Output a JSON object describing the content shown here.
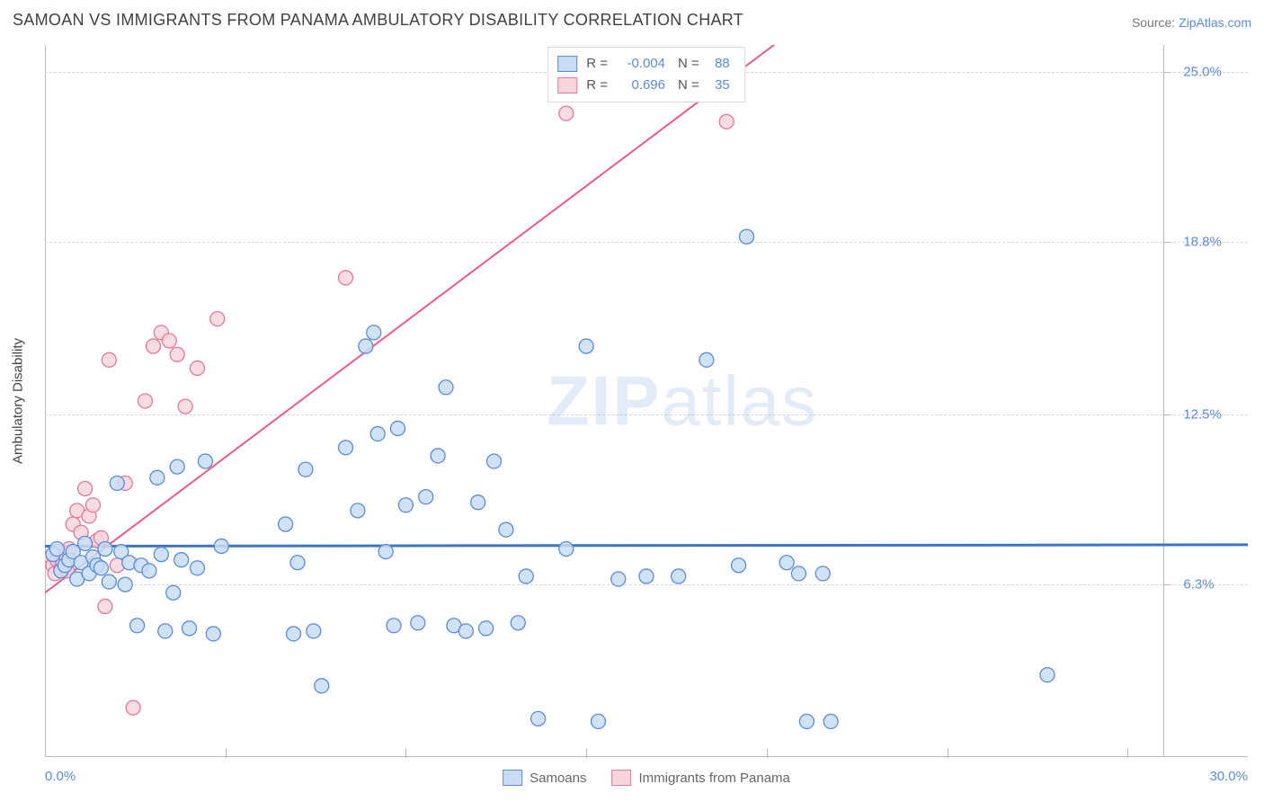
{
  "header": {
    "title": "SAMOAN VS IMMIGRANTS FROM PANAMA AMBULATORY DISABILITY CORRELATION CHART",
    "source_prefix": "Source: ",
    "source_link": "ZipAtlas.com"
  },
  "chart": {
    "type": "scatter",
    "y_axis_label": "Ambulatory Disability",
    "x_min": 0.0,
    "x_max": 30.0,
    "y_min": 0.0,
    "y_max": 26.0,
    "x_tick_start": 0.0,
    "x_tick_end": 30.0,
    "y_grid": [
      6.3,
      12.5,
      18.8,
      25.0
    ],
    "y_grid_labels": [
      "6.3%",
      "12.5%",
      "18.8%",
      "25.0%"
    ],
    "x_label_min": "0.0%",
    "x_label_max": "30.0%",
    "x_minor_ticks": [
      4.5,
      9.0,
      13.5,
      18.0,
      22.5,
      27.0
    ],
    "right_axis_x": 27.9,
    "background_color": "#ffffff",
    "grid_color": "#d6d6d6",
    "axis_color": "#b9b9b9",
    "marker_radius": 8,
    "marker_stroke_width": 1.3,
    "line_width_blue": 3,
    "line_width_pink": 2,
    "watermark": "ZIPatlas",
    "series": [
      {
        "id": "samoans",
        "label": "Samoans",
        "fill": "#c8ddf4",
        "stroke": "#5b8bd6",
        "r_value": "-0.004",
        "n_value": "88",
        "regression": {
          "y_start": 7.7,
          "y_end": 7.75
        },
        "points": [
          [
            0.2,
            7.4
          ],
          [
            0.3,
            7.6
          ],
          [
            0.4,
            6.8
          ],
          [
            0.5,
            7.0
          ],
          [
            0.6,
            7.2
          ],
          [
            0.7,
            7.5
          ],
          [
            0.8,
            6.5
          ],
          [
            0.9,
            7.1
          ],
          [
            1.0,
            7.8
          ],
          [
            1.1,
            6.7
          ],
          [
            1.2,
            7.3
          ],
          [
            1.3,
            7.0
          ],
          [
            1.4,
            6.9
          ],
          [
            1.5,
            7.6
          ],
          [
            1.6,
            6.4
          ],
          [
            1.8,
            10.0
          ],
          [
            1.9,
            7.5
          ],
          [
            2.0,
            6.3
          ],
          [
            2.1,
            7.1
          ],
          [
            2.3,
            4.8
          ],
          [
            2.4,
            7.0
          ],
          [
            2.6,
            6.8
          ],
          [
            2.8,
            10.2
          ],
          [
            2.9,
            7.4
          ],
          [
            3.0,
            4.6
          ],
          [
            3.2,
            6.0
          ],
          [
            3.3,
            10.6
          ],
          [
            3.4,
            7.2
          ],
          [
            3.6,
            4.7
          ],
          [
            3.8,
            6.9
          ],
          [
            4.0,
            10.8
          ],
          [
            4.2,
            4.5
          ],
          [
            4.4,
            7.7
          ],
          [
            6.0,
            8.5
          ],
          [
            6.2,
            4.5
          ],
          [
            6.3,
            7.1
          ],
          [
            6.5,
            10.5
          ],
          [
            6.7,
            4.6
          ],
          [
            6.9,
            2.6
          ],
          [
            7.5,
            11.3
          ],
          [
            7.8,
            9.0
          ],
          [
            8.0,
            15.0
          ],
          [
            8.2,
            15.5
          ],
          [
            8.3,
            11.8
          ],
          [
            8.5,
            7.5
          ],
          [
            8.7,
            4.8
          ],
          [
            8.8,
            12.0
          ],
          [
            9.0,
            9.2
          ],
          [
            9.3,
            4.9
          ],
          [
            9.5,
            9.5
          ],
          [
            9.8,
            11.0
          ],
          [
            10.0,
            13.5
          ],
          [
            10.2,
            4.8
          ],
          [
            10.5,
            4.6
          ],
          [
            10.8,
            9.3
          ],
          [
            11.0,
            4.7
          ],
          [
            11.2,
            10.8
          ],
          [
            11.5,
            8.3
          ],
          [
            11.8,
            4.9
          ],
          [
            12.0,
            6.6
          ],
          [
            12.3,
            1.4
          ],
          [
            13.0,
            7.6
          ],
          [
            13.5,
            15.0
          ],
          [
            13.8,
            1.3
          ],
          [
            14.3,
            6.5
          ],
          [
            15.0,
            6.6
          ],
          [
            15.8,
            6.6
          ],
          [
            16.5,
            14.5
          ],
          [
            17.3,
            7.0
          ],
          [
            17.5,
            19.0
          ],
          [
            18.5,
            7.1
          ],
          [
            18.8,
            6.7
          ],
          [
            19.0,
            1.3
          ],
          [
            19.4,
            6.7
          ],
          [
            19.6,
            1.3
          ],
          [
            25.0,
            3.0
          ]
        ]
      },
      {
        "id": "panama",
        "label": "Immigrants from Panama",
        "fill": "#f7d5de",
        "stroke": "#e07a98",
        "r_value": "0.696",
        "n_value": "35",
        "regression": {
          "y_start": 6.0,
          "y_end": 39.0
        },
        "points": [
          [
            0.15,
            7.3
          ],
          [
            0.2,
            7.0
          ],
          [
            0.25,
            6.7
          ],
          [
            0.3,
            7.2
          ],
          [
            0.35,
            7.5
          ],
          [
            0.4,
            6.9
          ],
          [
            0.45,
            7.1
          ],
          [
            0.5,
            7.4
          ],
          [
            0.55,
            6.8
          ],
          [
            0.6,
            7.6
          ],
          [
            0.7,
            8.5
          ],
          [
            0.8,
            9.0
          ],
          [
            0.9,
            8.2
          ],
          [
            1.0,
            9.8
          ],
          [
            1.1,
            8.8
          ],
          [
            1.2,
            9.2
          ],
          [
            1.3,
            7.9
          ],
          [
            1.4,
            8.0
          ],
          [
            1.5,
            5.5
          ],
          [
            1.6,
            14.5
          ],
          [
            1.8,
            7.0
          ],
          [
            2.0,
            10.0
          ],
          [
            2.2,
            1.8
          ],
          [
            2.5,
            13.0
          ],
          [
            2.7,
            15.0
          ],
          [
            2.9,
            15.5
          ],
          [
            3.1,
            15.2
          ],
          [
            3.3,
            14.7
          ],
          [
            3.5,
            12.8
          ],
          [
            3.8,
            14.2
          ],
          [
            4.3,
            16.0
          ],
          [
            7.5,
            17.5
          ],
          [
            13.0,
            23.5
          ],
          [
            17.0,
            23.2
          ]
        ]
      }
    ],
    "legend_top": {
      "r_label": "R =",
      "n_label": "N ="
    }
  }
}
